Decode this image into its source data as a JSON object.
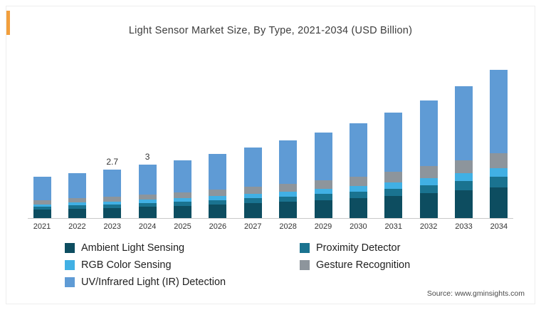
{
  "title": "Light Sensor Market Size, By Type, 2021-2034 (USD Billion)",
  "source": "Source: www.gminsights.com",
  "accent_color": "#f29f3d",
  "chart_data": {
    "type": "bar",
    "stacked": true,
    "unit": "USD Billion",
    "title": "Light Sensor Market Size, By Type, 2021-2034 (USD Billion)",
    "xlabel": "",
    "ylabel": "",
    "ylim": [
      0,
      9
    ],
    "grid": false,
    "legend_position": "bottom",
    "categories": [
      "2021",
      "2022",
      "2023",
      "2024",
      "2025",
      "2026",
      "2027",
      "2028",
      "2029",
      "2030",
      "2031",
      "2032",
      "2033",
      "2034"
    ],
    "bar_labels": [
      "",
      "",
      "2.7",
      "3",
      "",
      "",
      "",
      "",
      "",
      "",
      "",
      "",
      "",
      ""
    ],
    "totals": [
      2.3,
      2.5,
      2.7,
      3.0,
      3.25,
      3.6,
      3.95,
      4.35,
      4.8,
      5.3,
      5.9,
      6.6,
      7.4,
      8.3
    ],
    "series": [
      {
        "name": "Ambient Light Sensing",
        "color": "#0d4d60",
        "values": [
          0.48,
          0.53,
          0.57,
          0.63,
          0.68,
          0.76,
          0.83,
          0.91,
          1.01,
          1.11,
          1.24,
          1.39,
          1.55,
          1.74
        ]
      },
      {
        "name": "Proximity Detector",
        "color": "#1a7390",
        "values": [
          0.16,
          0.18,
          0.19,
          0.21,
          0.23,
          0.25,
          0.28,
          0.3,
          0.34,
          0.37,
          0.41,
          0.46,
          0.52,
          0.58
        ]
      },
      {
        "name": "RGB Color Sensing",
        "color": "#41b0e4",
        "values": [
          0.14,
          0.15,
          0.16,
          0.18,
          0.2,
          0.22,
          0.24,
          0.26,
          0.29,
          0.32,
          0.35,
          0.4,
          0.44,
          0.5
        ]
      },
      {
        "name": "Gesture Recognition",
        "color": "#8d959c",
        "values": [
          0.23,
          0.25,
          0.27,
          0.3,
          0.33,
          0.36,
          0.4,
          0.44,
          0.48,
          0.53,
          0.59,
          0.66,
          0.74,
          0.83
        ]
      },
      {
        "name": "UV/Infrared Light (IR) Detection",
        "color": "#5f9bd5",
        "values": [
          1.29,
          1.39,
          1.51,
          1.68,
          1.81,
          2.01,
          2.2,
          2.44,
          2.68,
          2.97,
          3.31,
          3.69,
          4.15,
          4.65
        ]
      }
    ]
  }
}
